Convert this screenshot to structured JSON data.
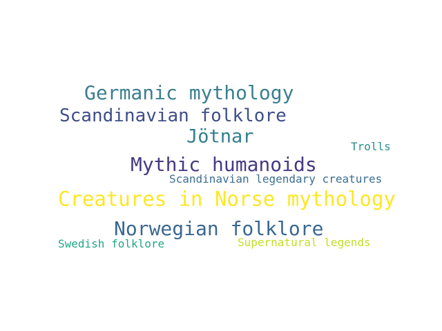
{
  "word_cloud": {
    "words": [
      {
        "text": "Germanic mythology",
        "color": "#3b7f8f"
      },
      {
        "text": "Scandinavian folklore",
        "color": "#3e4e89"
      },
      {
        "text": "Jötnar",
        "color": "#33808c"
      },
      {
        "text": "Trolls",
        "color": "#2a8f8b"
      },
      {
        "text": "Mythic humanoids",
        "color": "#463a84"
      },
      {
        "text": "Scandinavian legendary creatures",
        "color": "#3b6e8f"
      },
      {
        "text": "Creatures in Norse mythology",
        "color": "#fde725"
      },
      {
        "text": "Norwegian folklore",
        "color": "#3a6790"
      },
      {
        "text": "Swedish folklore",
        "color": "#22a785"
      },
      {
        "text": "Supernatural legends",
        "color": "#c2df23"
      }
    ]
  }
}
